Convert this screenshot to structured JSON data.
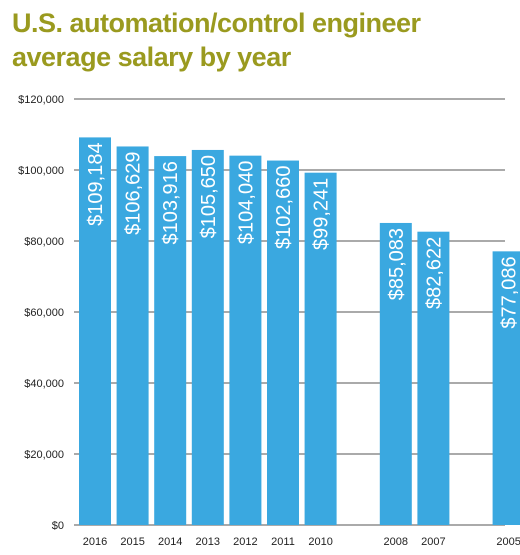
{
  "chart_data": {
    "type": "bar",
    "title_lines": [
      "U.S. automation/control engineer",
      "average salary by year"
    ],
    "categories": [
      "2016",
      "2015",
      "2014",
      "2013",
      "2012",
      "2011",
      "2010",
      "2008",
      "2007",
      "2005"
    ],
    "values": [
      109184,
      106629,
      103916,
      105650,
      104040,
      102660,
      99241,
      85083,
      82622,
      77086
    ],
    "value_labels": [
      "$109,184",
      "$106,629",
      "$103,916",
      "$105,650",
      "$104,040",
      "$102,660",
      "$99,241",
      "$85,083",
      "$82,622",
      "$77,086"
    ],
    "ylim": [
      0,
      120000
    ],
    "yticks": [
      0,
      20000,
      40000,
      60000,
      80000,
      100000,
      120000
    ],
    "ytick_labels": [
      "$0",
      "$20,000",
      "$40,000",
      "$60,000",
      "$80,000",
      "$100,000",
      "$120,000"
    ],
    "grid": true,
    "bar_color": "#3aa8e0",
    "title_color": "#9a9a1f"
  }
}
